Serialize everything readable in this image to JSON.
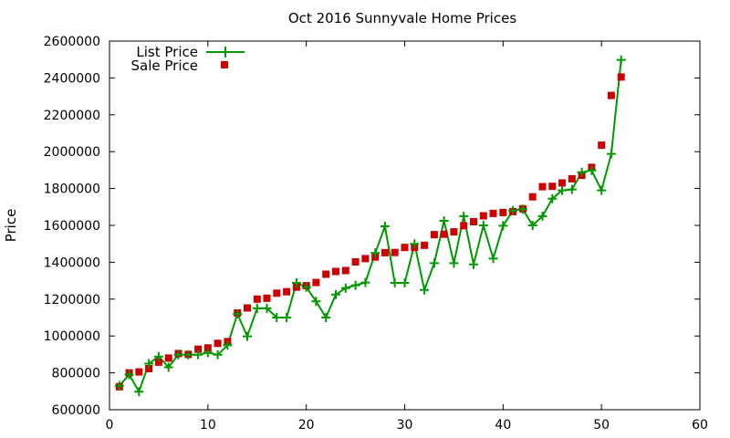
{
  "chart_data": {
    "type": "line",
    "title": "Oct 2016 Sunnyvale Home Prices",
    "xlabel": "",
    "ylabel": "Price",
    "xlim": [
      0,
      60
    ],
    "ylim": [
      600000,
      2600000
    ],
    "xticks": [
      0,
      10,
      20,
      30,
      40,
      50,
      60
    ],
    "yticks": [
      600000,
      800000,
      1000000,
      1200000,
      1400000,
      1600000,
      1800000,
      2000000,
      2200000,
      2400000,
      2600000
    ],
    "grid": false,
    "legend_position": "top-left",
    "x": [
      1,
      2,
      3,
      4,
      5,
      6,
      7,
      8,
      9,
      10,
      11,
      12,
      13,
      14,
      15,
      16,
      17,
      18,
      19,
      20,
      21,
      22,
      23,
      24,
      25,
      26,
      27,
      28,
      29,
      30,
      31,
      32,
      33,
      34,
      35,
      36,
      37,
      38,
      39,
      40,
      41,
      42,
      43,
      44,
      45,
      46,
      47,
      48,
      49,
      50,
      51,
      52
    ],
    "series": [
      {
        "name": "List Price",
        "style": "linespoints",
        "color": "#009900",
        "marker": "plus",
        "values": [
          730000,
          790000,
          698000,
          850000,
          888000,
          830000,
          898000,
          898000,
          898000,
          910000,
          898000,
          950000,
          1120000,
          998000,
          1150000,
          1150000,
          1100000,
          1100000,
          1288000,
          1265000,
          1188000,
          1100000,
          1225000,
          1260000,
          1275000,
          1290000,
          1450000,
          1595000,
          1288000,
          1288000,
          1500000,
          1250000,
          1395000,
          1625000,
          1395000,
          1650000,
          1388000,
          1600000,
          1420000,
          1598000,
          1680000,
          1688000,
          1600000,
          1650000,
          1745000,
          1790000,
          1795000,
          1888000,
          1898000,
          1790000,
          1988000,
          2498000
        ]
      },
      {
        "name": "Sale Price",
        "style": "points",
        "color": "#cc0000",
        "marker": "square",
        "values": [
          725000,
          800000,
          805000,
          823000,
          858000,
          880000,
          905000,
          900000,
          928000,
          935000,
          960000,
          970000,
          1125000,
          1152000,
          1200000,
          1205000,
          1232000,
          1240000,
          1265000,
          1273000,
          1290000,
          1335000,
          1350000,
          1355000,
          1402000,
          1420000,
          1428000,
          1452000,
          1453000,
          1480000,
          1480000,
          1492000,
          1550000,
          1552000,
          1565000,
          1598000,
          1620000,
          1652000,
          1665000,
          1670000,
          1675000,
          1690000,
          1755000,
          1810000,
          1812000,
          1830000,
          1853000,
          1872000,
          1915000,
          2035000,
          2305000,
          2405000
        ]
      }
    ]
  }
}
